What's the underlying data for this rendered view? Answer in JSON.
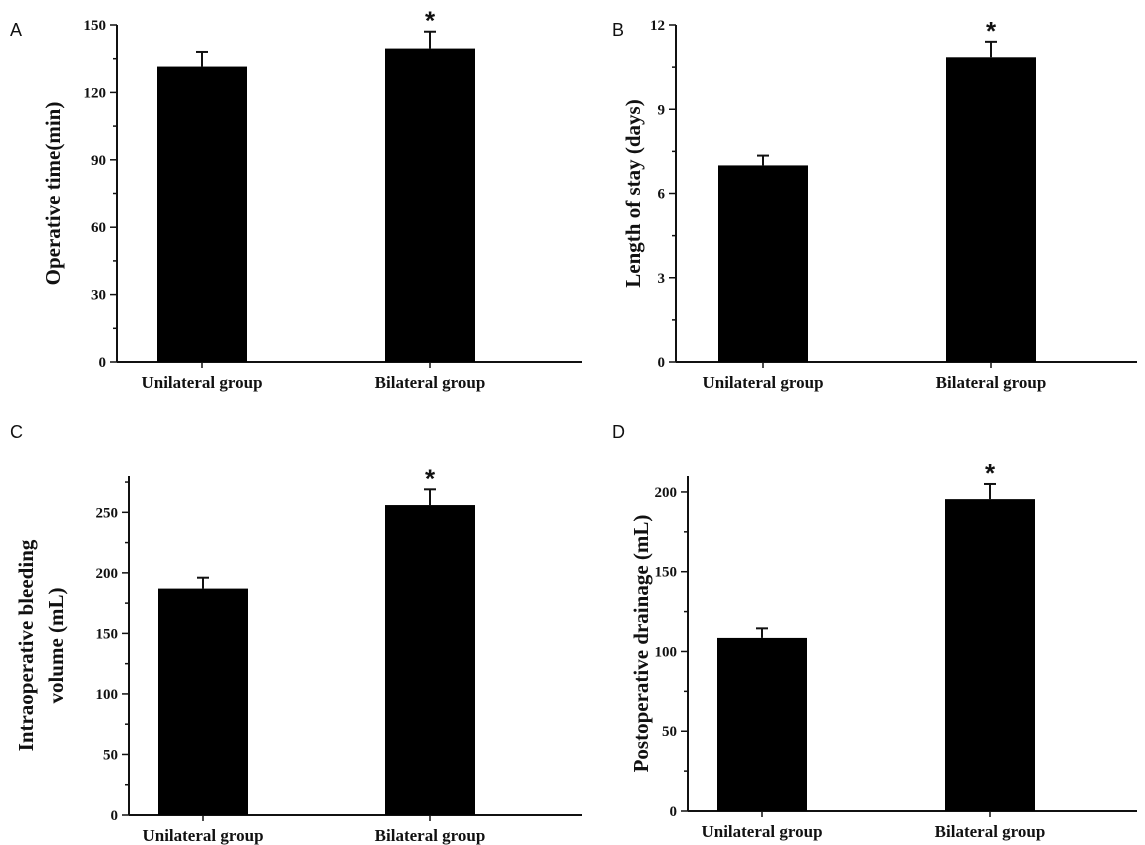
{
  "chart_data": [
    {
      "panel": "A",
      "type": "bar",
      "categories": [
        "Unilateral group",
        "Bilateral group"
      ],
      "values": [
        131.5,
        139.5
      ],
      "errors": [
        6.5,
        7.5
      ],
      "significance": [
        "",
        "*"
      ],
      "ylabel": [
        "Operative time(min)"
      ],
      "ylim": [
        0,
        150
      ],
      "yticks": [
        0,
        30,
        60,
        90,
        120,
        150
      ]
    },
    {
      "panel": "B",
      "type": "bar",
      "categories": [
        "Unilateral group",
        "Bilateral group"
      ],
      "values": [
        7.0,
        10.85
      ],
      "errors": [
        0.35,
        0.55
      ],
      "significance": [
        "",
        "*"
      ],
      "ylabel": [
        "Length of stay (days)"
      ],
      "ylim": [
        0,
        12
      ],
      "yticks": [
        0,
        3,
        6,
        9,
        12
      ]
    },
    {
      "panel": "C",
      "type": "bar",
      "categories": [
        "Unilateral group",
        "Bilateral group"
      ],
      "values": [
        187,
        256
      ],
      "errors": [
        9,
        13
      ],
      "significance": [
        "",
        "*"
      ],
      "ylabel": [
        "Intraoperative bleeding",
        "volume (mL)"
      ],
      "ylim": [
        0,
        280
      ],
      "yticks": [
        0,
        50,
        100,
        150,
        200,
        250
      ]
    },
    {
      "panel": "D",
      "type": "bar",
      "categories": [
        "Unilateral group",
        "Bilateral group"
      ],
      "values": [
        108.5,
        195.5
      ],
      "errors": [
        6,
        9.5
      ],
      "significance": [
        "",
        "*"
      ],
      "ylabel": [
        "Postoperative drainage (mL)"
      ],
      "ylim": [
        0,
        210
      ],
      "yticks": [
        0,
        50,
        100,
        150,
        200
      ]
    }
  ],
  "colors": {
    "bar": "#000000",
    "axis": "#111111",
    "background": "#ffffff"
  }
}
